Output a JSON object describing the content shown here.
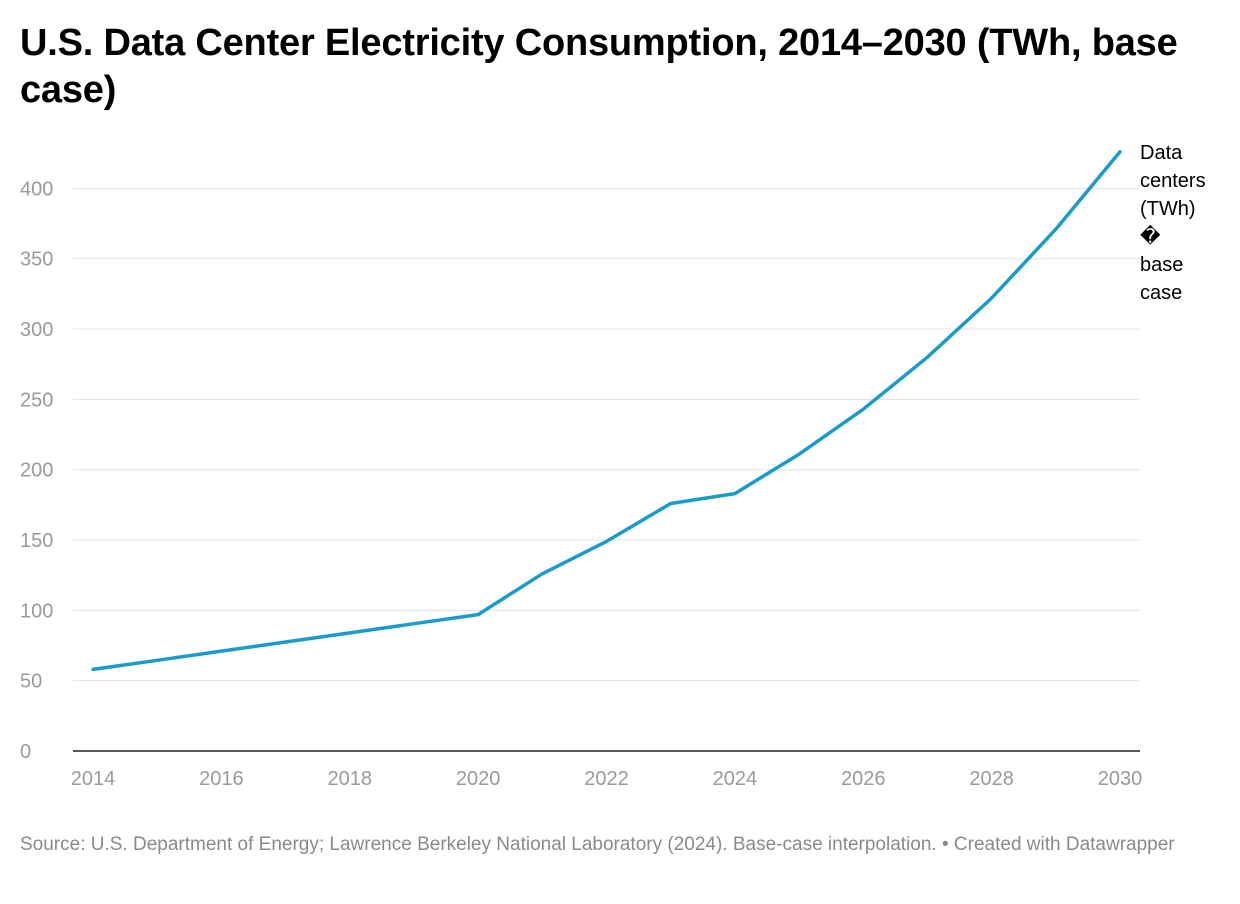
{
  "chart_data": {
    "type": "line",
    "title": "U.S. Data Center Electricity Consumption, 2014–2030 (TWh, base case)",
    "xlabel": "",
    "ylabel": "",
    "x": [
      2014,
      2015,
      2016,
      2017,
      2018,
      2019,
      2020,
      2021,
      2022,
      2023,
      2024,
      2025,
      2026,
      2027,
      2028,
      2029,
      2030
    ],
    "series": [
      {
        "name": "Data centers (TWh) � base case",
        "values": [
          58,
          64.5,
          71,
          77.5,
          84,
          90.5,
          97,
          126,
          149,
          176,
          183,
          211,
          243,
          280,
          322,
          371,
          426
        ],
        "color": "#1b9bc9"
      }
    ],
    "xlim": [
      2014,
      2030
    ],
    "ylim": [
      0,
      426
    ],
    "x_ticks": [
      "2014",
      "2016",
      "2018",
      "2020",
      "2022",
      "2024",
      "2026",
      "2028",
      "2030"
    ],
    "y_ticks": [
      "0",
      "50",
      "100",
      "150",
      "200",
      "250",
      "300",
      "350",
      "400"
    ],
    "series_label_lines": [
      "Data",
      "centers",
      "(TWh)",
      "�",
      "base",
      "case"
    ],
    "grid": true,
    "legend": "direct label at line end (right)",
    "source": "Source: U.S. Department of Energy; Lawrence Berkeley National Laboratory (2024). Base-case interpolation. • Created with Datawrapper"
  }
}
